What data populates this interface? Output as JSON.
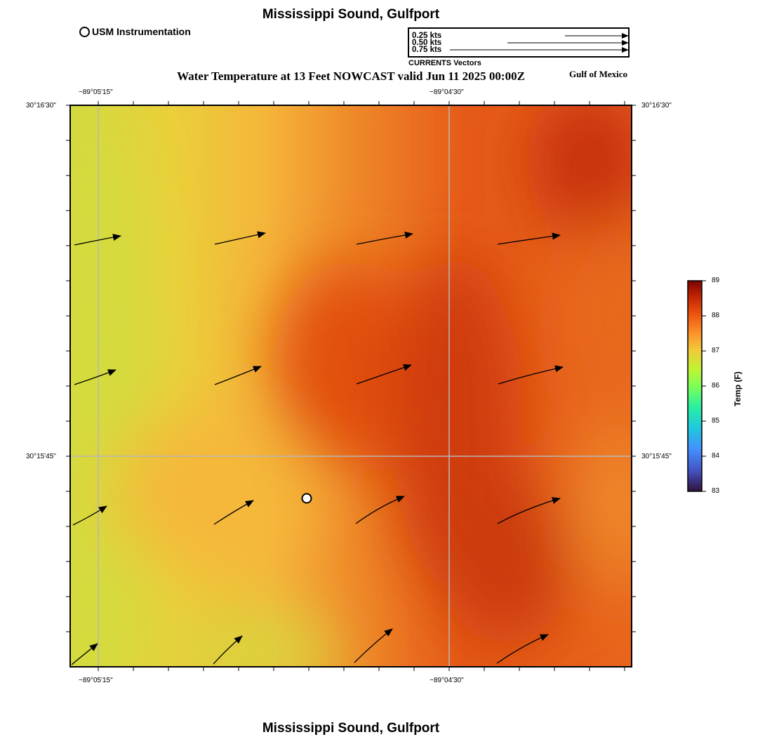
{
  "titles": {
    "top": "Mississippi Sound, Gulfport",
    "bottom": "Mississippi Sound, Gulfport",
    "subtitle": "Water Temperature at 13 Feet NOWCAST valid Jun 11 2025 00:00Z",
    "region": "Gulf of Mexico"
  },
  "legend": {
    "usm_label": "USM Instrumentation",
    "vector_caption": "CURRENTS Vectors",
    "vector_scale": [
      {
        "label": "0.25 kts",
        "kts": 0.25
      },
      {
        "label": "0.50 kts",
        "kts": 0.5
      },
      {
        "label": "0.75 kts",
        "kts": 0.75
      }
    ]
  },
  "axes": {
    "lon_labels": [
      "−89°05'15\"",
      "−89°04'30\""
    ],
    "lat_labels": [
      "30°16'30\"",
      "30°15'45\""
    ]
  },
  "colorbar": {
    "title": "Temp (F)",
    "min": 83,
    "max": 89,
    "ticks": [
      "89",
      "88",
      "87",
      "86",
      "85",
      "84",
      "83"
    ]
  },
  "colors": {
    "cool": "#d4dc3c",
    "warm_yellow": "#f5b83a",
    "orange": "#ec6a1f",
    "hot": "#d63a0e",
    "hottest": "#c52d08"
  },
  "marker": {
    "name": "usm-station"
  }
}
